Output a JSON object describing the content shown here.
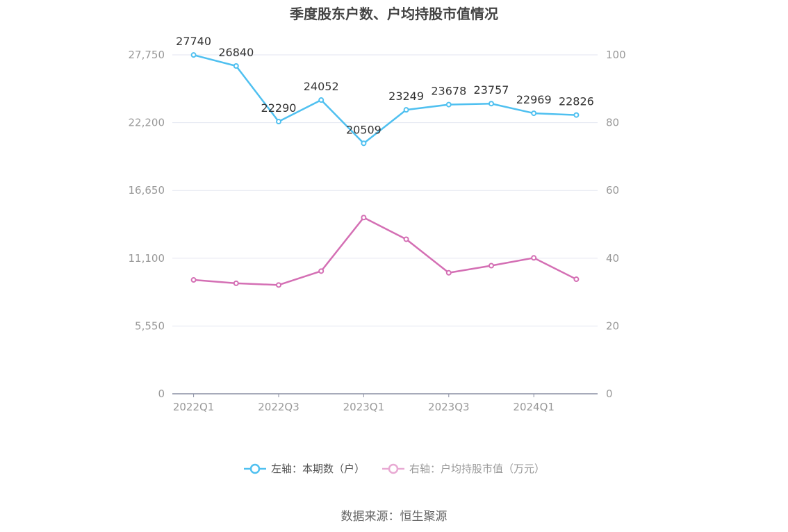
{
  "chart_data": {
    "type": "line",
    "title": "季度股东户数、户均持股市值情况",
    "categories": [
      "2022Q1",
      "2022Q2",
      "2022Q3",
      "2022Q4",
      "2023Q1",
      "2023Q2",
      "2023Q3",
      "2023Q4",
      "2024Q1",
      "2024Q2"
    ],
    "x_tick_labels": [
      "2022Q1",
      "2022Q3",
      "2023Q1",
      "2023Q3",
      "2024Q1"
    ],
    "left_axis": {
      "ticks": [
        "0",
        "5,550",
        "11,100",
        "16,650",
        "22,200",
        "27,750"
      ],
      "range": [
        0,
        27750
      ]
    },
    "right_axis": {
      "ticks": [
        "0",
        "20",
        "40",
        "60",
        "80",
        "100"
      ],
      "range": [
        0,
        100
      ]
    },
    "series": [
      {
        "name": "左轴：本期数（户）",
        "axis": "left",
        "color": "#4fc0f0",
        "values": [
          27740,
          26840,
          22290,
          24052,
          20509,
          23249,
          23678,
          23757,
          22969,
          22826
        ],
        "labels": [
          "27740",
          "26840",
          "22290",
          "24052",
          "20509",
          "23249",
          "23678",
          "23757",
          "22969",
          "22826"
        ]
      },
      {
        "name": "右轴：户均持股市值（万元）",
        "axis": "right",
        "color": "#d46fb4",
        "values": [
          33.6,
          32.6,
          32.1,
          36.2,
          52.0,
          45.6,
          35.7,
          37.8,
          40.1,
          33.8
        ]
      }
    ],
    "grid": true,
    "legend_position": "bottom"
  },
  "source": "数据来源：恒生聚源"
}
